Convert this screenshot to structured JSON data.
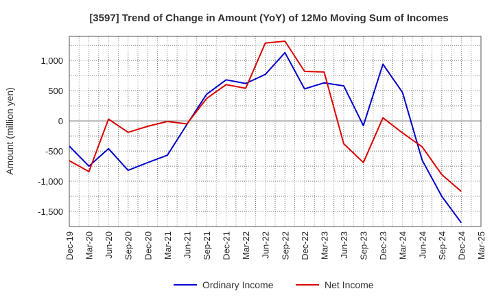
{
  "chart_data": {
    "type": "line",
    "title": "[3597]  Trend of Change in Amount (YoY) of 12Mo Moving Sum of Incomes",
    "xlabel": "",
    "ylabel": "Amount (million yen)",
    "categories": [
      "Dec-19",
      "Mar-20",
      "Jun-20",
      "Sep-20",
      "Dec-20",
      "Mar-21",
      "Jun-21",
      "Sep-21",
      "Dec-21",
      "Mar-22",
      "Jun-22",
      "Sep-22",
      "Dec-22",
      "Mar-23",
      "Jun-23",
      "Sep-23",
      "Dec-23",
      "Mar-24",
      "Jun-24",
      "Sep-24",
      "Dec-24",
      "Mar-25"
    ],
    "ylim": [
      -1750,
      1400
    ],
    "yticks": [
      1000,
      500,
      0,
      -500,
      -1000,
      -1500
    ],
    "ytick_labels": [
      "1,000",
      "500",
      "0",
      "-500",
      "-1,000",
      "-1,500"
    ],
    "grid": true,
    "legend_position": "bottom-center",
    "series": [
      {
        "name": "Ordinary Income",
        "color": "#0000cc",
        "values": [
          -420,
          -750,
          -460,
          -820,
          -690,
          -570,
          -60,
          440,
          680,
          620,
          770,
          1130,
          530,
          630,
          580,
          -80,
          940,
          470,
          -650,
          -1250,
          -1690,
          null
        ]
      },
      {
        "name": "Net Income",
        "color": "#dd0000",
        "values": [
          -660,
          -840,
          30,
          -190,
          -90,
          -10,
          -50,
          370,
          600,
          540,
          1290,
          1320,
          820,
          810,
          -380,
          -690,
          50,
          -200,
          -430,
          -890,
          -1170,
          null
        ]
      }
    ]
  }
}
